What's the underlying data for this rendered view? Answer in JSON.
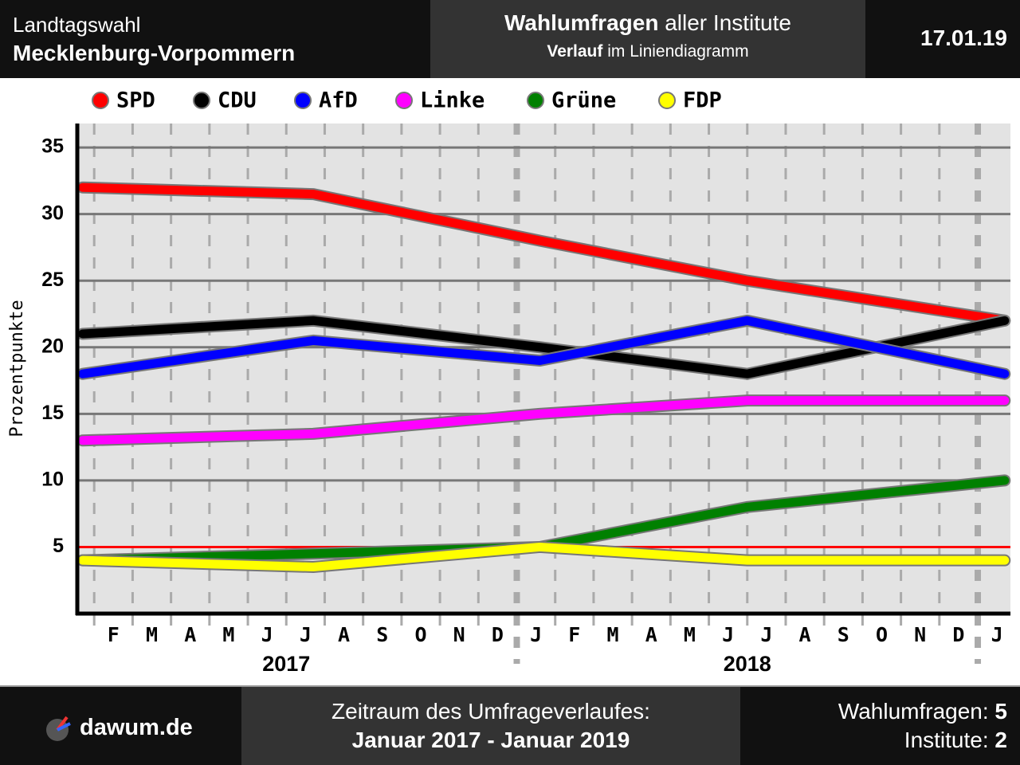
{
  "header": {
    "region_label": "Landtagswahl",
    "region": "Mecklenburg-Vorpommern",
    "title_bold": "Wahlumfragen",
    "title_rest": "aller Institute",
    "subtitle_bold": "Verlauf",
    "subtitle_rest": "im Liniendiagramm",
    "date": "17.01.19"
  },
  "chart_data": {
    "type": "line",
    "y_label": "Prozentpunkte",
    "x": [
      0.7,
      6.7,
      12.6,
      18.0,
      24.7
    ],
    "xlim": [
      0.56,
      24.85
    ],
    "xticks": [
      {
        "value": 1.5,
        "label": "F"
      },
      {
        "value": 2.5,
        "label": "M"
      },
      {
        "value": 3.5,
        "label": "A"
      },
      {
        "value": 4.5,
        "label": "M"
      },
      {
        "value": 5.5,
        "label": "J"
      },
      {
        "value": 6.5,
        "label": "J"
      },
      {
        "value": 7.5,
        "label": "A"
      },
      {
        "value": 8.5,
        "label": "S"
      },
      {
        "value": 9.5,
        "label": "O"
      },
      {
        "value": 10.5,
        "label": "N"
      },
      {
        "value": 11.5,
        "label": "D"
      },
      {
        "value": 12.5,
        "label": "J"
      },
      {
        "value": 13.5,
        "label": "F"
      },
      {
        "value": 14.5,
        "label": "M"
      },
      {
        "value": 15.5,
        "label": "A"
      },
      {
        "value": 16.5,
        "label": "M"
      },
      {
        "value": 17.5,
        "label": "J"
      },
      {
        "value": 18.5,
        "label": "J"
      },
      {
        "value": 19.5,
        "label": "A"
      },
      {
        "value": 20.5,
        "label": "S"
      },
      {
        "value": 21.5,
        "label": "O"
      },
      {
        "value": 22.5,
        "label": "N"
      },
      {
        "value": 23.5,
        "label": "D"
      },
      {
        "value": 24.5,
        "label": "J"
      }
    ],
    "xgrid": [
      1,
      2,
      3,
      4,
      5,
      6,
      7,
      8,
      9,
      10,
      11,
      12,
      13,
      14,
      15,
      16,
      17,
      18,
      19,
      20,
      21,
      22,
      23,
      24
    ],
    "year_ticks": [
      {
        "value": 6,
        "label": "2017"
      },
      {
        "value": 18,
        "label": "2018"
      }
    ],
    "ylim": [
      0,
      36.8
    ],
    "yticks": [
      5,
      10,
      15,
      20,
      25,
      30,
      35
    ],
    "grid": true,
    "threshold": 5,
    "threshold_color": "#ff0000",
    "series": [
      {
        "name": "SPD",
        "color": "#ff0000",
        "values": [
          32,
          31.5,
          28,
          25,
          22
        ]
      },
      {
        "name": "CDU",
        "color": "#000000",
        "values": [
          21,
          22,
          20,
          18,
          22
        ]
      },
      {
        "name": "AfD",
        "color": "#0000ff",
        "values": [
          18,
          20.5,
          19,
          22,
          18
        ]
      },
      {
        "name": "Linke",
        "color": "#ff00ff",
        "values": [
          13,
          13.5,
          15,
          16,
          16
        ]
      },
      {
        "name": "Grüne",
        "color": "#008000",
        "values": [
          4,
          4.5,
          5,
          8,
          10
        ]
      },
      {
        "name": "FDP",
        "color": "#ffff00",
        "values": [
          4,
          3.5,
          5,
          4,
          4
        ]
      }
    ]
  },
  "footer": {
    "brand": "dawum.de",
    "period_label": "Zeitraum des Umfrageverlaufes:",
    "period": "Januar 2017 - Januar 2019",
    "polls_label": "Wahlumfragen:",
    "polls": 5,
    "institutes_label": "Institute:",
    "institutes": 2
  }
}
